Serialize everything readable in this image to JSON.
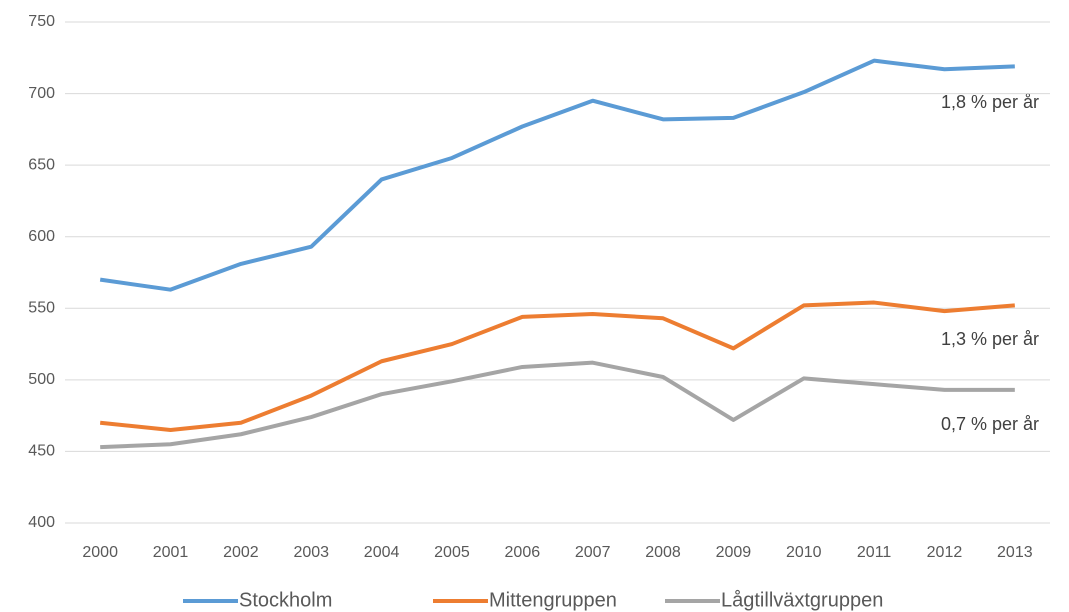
{
  "chart_data": {
    "type": "line",
    "categories": [
      "2000",
      "2001",
      "2002",
      "2003",
      "2004",
      "2005",
      "2006",
      "2007",
      "2008",
      "2009",
      "2010",
      "2011",
      "2012",
      "2013"
    ],
    "series": [
      {
        "name": "Stockholm",
        "color": "#5b9bd5",
        "values": [
          570,
          563,
          581,
          593,
          640,
          655,
          677,
          695,
          682,
          683,
          701,
          723,
          717,
          719
        ]
      },
      {
        "name": "Mittengruppen",
        "color": "#ed7d31",
        "values": [
          470,
          465,
          470,
          489,
          513,
          525,
          544,
          546,
          543,
          522,
          552,
          554,
          548,
          552
        ]
      },
      {
        "name": "Lågtillväxtgruppen",
        "color": "#a5a5a5",
        "values": [
          453,
          455,
          462,
          474,
          490,
          499,
          509,
          512,
          502,
          472,
          501,
          497,
          493,
          493
        ]
      }
    ],
    "annotations": [
      "1,8 % per år",
      "1,3 % per år",
      "0,7 % per år"
    ],
    "ylim": [
      400,
      750
    ],
    "yticks": [
      400,
      450,
      500,
      550,
      600,
      650,
      700,
      750
    ],
    "grid": true
  }
}
